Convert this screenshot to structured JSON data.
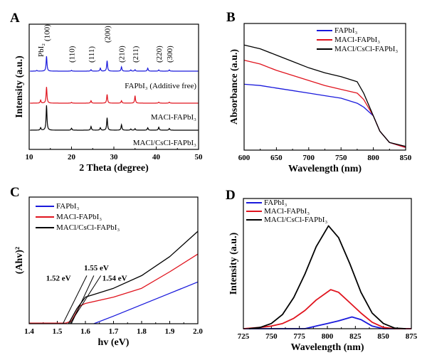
{
  "chart_data": [
    {
      "panel": "A",
      "type": "line",
      "xlabel": "2 Theta (degree)",
      "ylabel": "Intensity (a.u.)",
      "xlim": [
        10,
        50
      ],
      "xticks": [
        "10",
        "20",
        "30",
        "40",
        "50"
      ],
      "peak_labels": [
        {
          "x": 12.7,
          "text": "PbI₂"
        },
        {
          "x": 14.1,
          "text": "(100)"
        },
        {
          "x": 20.0,
          "text": "(110)"
        },
        {
          "x": 24.6,
          "text": "(111)"
        },
        {
          "x": 28.4,
          "text": "(200)"
        },
        {
          "x": 31.8,
          "text": "(210)"
        },
        {
          "x": 35.0,
          "text": "(211)"
        },
        {
          "x": 40.6,
          "text": "(220)"
        },
        {
          "x": 43.1,
          "text": "(300)"
        }
      ],
      "series": [
        {
          "name": "MACl/CsCl-FAPbI₃",
          "color": "#000000",
          "offset": 2,
          "peaks": [
            [
              12.7,
              0.1
            ],
            [
              14.1,
              1.0
            ],
            [
              20.0,
              0.08
            ],
            [
              24.6,
              0.15
            ],
            [
              26.8,
              0.1
            ],
            [
              28.4,
              0.5
            ],
            [
              31.8,
              0.22
            ],
            [
              34.0,
              0.05
            ],
            [
              35.0,
              0.06
            ],
            [
              38.0,
              0.1
            ],
            [
              40.6,
              0.12
            ],
            [
              43.1,
              0.07
            ]
          ]
        },
        {
          "name": "MACl-FAPbI₃",
          "color": "#e0141e",
          "offset": 1,
          "peaks": [
            [
              12.7,
              0.12
            ],
            [
              14.1,
              0.65
            ],
            [
              20.0,
              0.03
            ],
            [
              24.6,
              0.1
            ],
            [
              28.4,
              0.35
            ],
            [
              31.8,
              0.1
            ],
            [
              35.0,
              0.3
            ],
            [
              40.6,
              0.04
            ],
            [
              43.1,
              0.04
            ]
          ]
        },
        {
          "name": "FAPbI₃ (Additive free)",
          "color": "#1a1adc",
          "offset": 0,
          "peaks": [
            [
              11.8,
              0.03
            ],
            [
              14.1,
              0.6
            ],
            [
              20.0,
              0.03
            ],
            [
              24.6,
              0.06
            ],
            [
              26.8,
              0.12
            ],
            [
              28.4,
              0.42
            ],
            [
              31.8,
              0.17
            ],
            [
              34.0,
              0.05
            ],
            [
              35.0,
              0.06
            ],
            [
              38.0,
              0.12
            ],
            [
              40.6,
              0.05
            ],
            [
              43.1,
              0.05
            ]
          ]
        }
      ]
    },
    {
      "panel": "B",
      "type": "line",
      "xlabel": "Wavelength (nm)",
      "ylabel": "Absorbance (a.u.)",
      "xlim": [
        600,
        850
      ],
      "ylim": [
        0,
        1
      ],
      "xticks": [
        "600",
        "650",
        "700",
        "750",
        "800",
        "850"
      ],
      "legend": "top-right",
      "x": [
        600,
        625,
        650,
        675,
        700,
        725,
        750,
        775,
        785,
        800,
        810,
        825,
        850
      ],
      "series": [
        {
          "name": "FAPbI₃",
          "color": "#1a1adc",
          "values": [
            0.52,
            0.51,
            0.49,
            0.47,
            0.45,
            0.43,
            0.41,
            0.37,
            0.34,
            0.27,
            0.15,
            0.06,
            0.02
          ]
        },
        {
          "name": "MACl-FAPbI₃",
          "color": "#e0141e",
          "values": [
            0.71,
            0.68,
            0.63,
            0.59,
            0.55,
            0.51,
            0.48,
            0.45,
            0.4,
            0.27,
            0.15,
            0.06,
            0.02
          ]
        },
        {
          "name": "MACl/CsCl-FAPbI₃",
          "color": "#000000",
          "values": [
            0.83,
            0.8,
            0.75,
            0.7,
            0.65,
            0.61,
            0.58,
            0.54,
            0.45,
            0.27,
            0.15,
            0.06,
            0.03
          ]
        }
      ]
    },
    {
      "panel": "C",
      "type": "line",
      "xlabel": "hv (eV)",
      "ylabel": "(Ahv)²",
      "xlim": [
        1.4,
        2.0
      ],
      "ylim": [
        0,
        1
      ],
      "xticks": [
        "1.4",
        "1.5",
        "1.6",
        "1.7",
        "1.8",
        "1.9",
        "2.0"
      ],
      "legend": "top-left",
      "series": [
        {
          "name": "FAPbI₃",
          "color": "#1a1adc",
          "x": [
            1.63,
            1.7,
            1.8,
            1.9,
            2.0
          ],
          "values": [
            0,
            0.06,
            0.15,
            0.24,
            0.33
          ]
        },
        {
          "name": "MACl-FAPbI₃",
          "color": "#e0141e",
          "x": [
            1.4,
            1.53,
            1.55,
            1.58,
            1.6,
            1.7,
            1.8,
            1.9,
            2.0
          ],
          "values": [
            0.005,
            0.005,
            0.02,
            0.14,
            0.16,
            0.21,
            0.28,
            0.41,
            0.55
          ]
        },
        {
          "name": "MACl/CsCl-FAPbI₃",
          "color": "#000000",
          "x": [
            1.54,
            1.57,
            1.6,
            1.7,
            1.8,
            1.9,
            2.0
          ],
          "values": [
            0.0,
            0.12,
            0.21,
            0.28,
            0.38,
            0.53,
            0.73
          ]
        }
      ],
      "tangents": [
        {
          "label": "1.52 eV",
          "from": [
            1.52,
            0
          ],
          "to": [
            1.605,
            0.38
          ],
          "label_at": [
            1.46,
            0.34
          ]
        },
        {
          "label": "1.55 eV",
          "from": [
            1.55,
            0
          ],
          "to": [
            1.63,
            0.38
          ],
          "label_at": [
            1.595,
            0.42
          ]
        },
        {
          "label": "1.54 eV",
          "from": [
            1.545,
            0
          ],
          "to": [
            1.655,
            0.38
          ],
          "label_at": [
            1.66,
            0.34
          ]
        }
      ]
    },
    {
      "panel": "D",
      "type": "line",
      "xlabel": "Wavelength (nm)",
      "ylabel": "Intensity (a.u.)",
      "xlim": [
        725,
        875
      ],
      "ylim": [
        0,
        1
      ],
      "xticks": [
        "725",
        "750",
        "775",
        "800",
        "825",
        "850",
        "875"
      ],
      "legend": "top-left",
      "series": [
        {
          "name": "FAPbI₃",
          "color": "#1a1adc",
          "x": [
            725,
            760,
            780,
            790,
            800,
            810,
            822,
            830,
            840,
            850,
            875
          ],
          "values": [
            0,
            0,
            0,
            0.02,
            0.04,
            0.06,
            0.09,
            0.07,
            0.02,
            0,
            0
          ]
        },
        {
          "name": "MACl-FAPbI₃",
          "color": "#e0141e",
          "x": [
            725,
            740,
            750,
            760,
            770,
            780,
            790,
            803,
            810,
            820,
            830,
            840,
            850,
            860,
            875
          ],
          "values": [
            0,
            0.01,
            0.02,
            0.04,
            0.08,
            0.14,
            0.22,
            0.3,
            0.28,
            0.2,
            0.12,
            0.05,
            0.01,
            0,
            0
          ]
        },
        {
          "name": "MACl/CsCl-FAPbI₃",
          "color": "#000000",
          "x": [
            730,
            740,
            750,
            760,
            770,
            780,
            790,
            801,
            810,
            820,
            830,
            840,
            850,
            860,
            870
          ],
          "values": [
            0,
            0.01,
            0.04,
            0.11,
            0.24,
            0.42,
            0.63,
            0.79,
            0.7,
            0.5,
            0.28,
            0.12,
            0.04,
            0.005,
            0
          ]
        }
      ]
    }
  ]
}
